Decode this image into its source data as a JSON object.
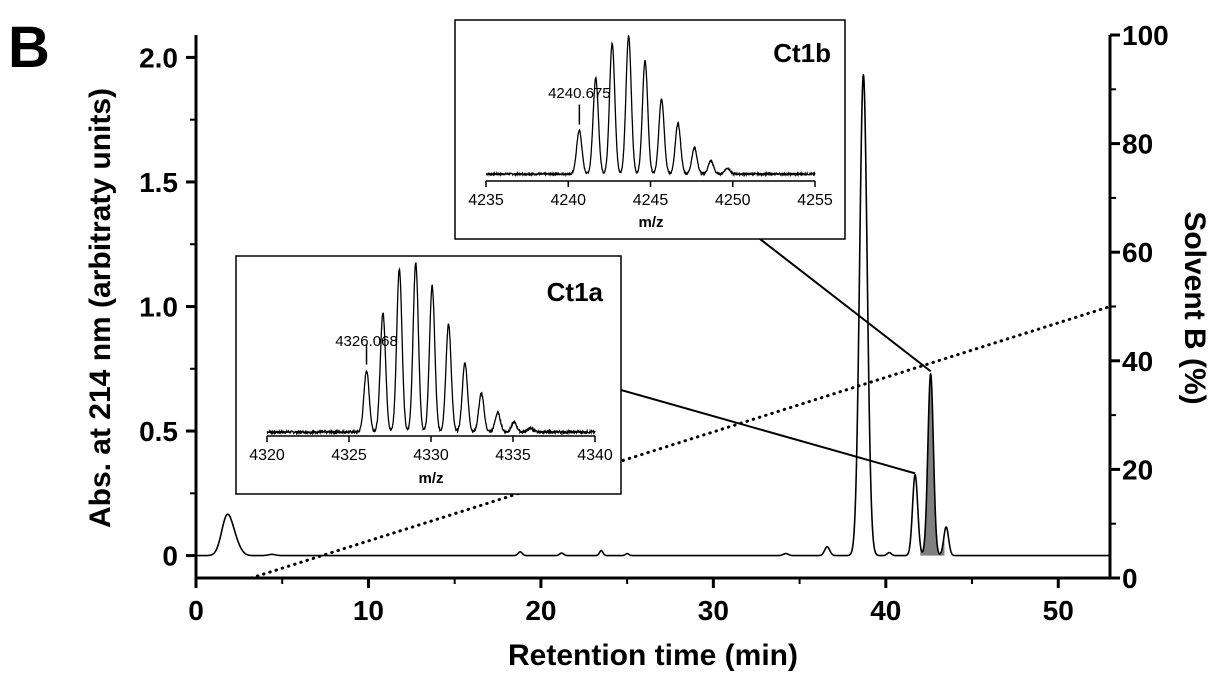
{
  "panel_label": "B",
  "chart_data": [
    {
      "type": "line",
      "xlabel": "Retention time (min)",
      "ylabel": "Abs. at 214 nm (arbitraty units)",
      "y2label": "Solvent B (%)",
      "xlim": [
        0,
        53
      ],
      "ylim": [
        -0.09,
        2.09
      ],
      "y2lim": [
        0,
        100
      ],
      "xticks": [
        "0",
        "10",
        "20",
        "30",
        "40",
        "50"
      ],
      "yticks": [
        "0",
        "0.5",
        "1.0",
        "1.5",
        "2.0"
      ],
      "y2ticks": [
        "0",
        "20",
        "40",
        "60",
        "80",
        "100"
      ],
      "xtick_values": [
        0,
        10,
        20,
        30,
        40,
        50
      ],
      "ytick_values": [
        0,
        0.5,
        1.0,
        1.5,
        2.0
      ],
      "y2tick_values": [
        0,
        20,
        40,
        60,
        80,
        100
      ],
      "series": [
        {
          "kind": "chromatogram",
          "baseline": 0,
          "peaks": [
            {
              "x": 1.8,
              "height": 0.155,
              "width": 0.32
            },
            {
              "x": 2.3,
              "height": 0.04,
              "width": 0.3
            },
            {
              "x": 4.4,
              "height": 0.005,
              "width": 0.2
            },
            {
              "x": 18.8,
              "height": 0.015,
              "width": 0.12
            },
            {
              "x": 21.2,
              "height": 0.01,
              "width": 0.12
            },
            {
              "x": 23.5,
              "height": 0.02,
              "width": 0.1
            },
            {
              "x": 25.0,
              "height": 0.008,
              "width": 0.1
            },
            {
              "x": 34.2,
              "height": 0.008,
              "width": 0.15
            },
            {
              "x": 36.6,
              "height": 0.035,
              "width": 0.15
            },
            {
              "x": 38.7,
              "height": 1.93,
              "width": 0.22
            },
            {
              "x": 40.2,
              "height": 0.012,
              "width": 0.12
            },
            {
              "x": 41.7,
              "height": 0.325,
              "width": 0.15
            },
            {
              "x": 42.6,
              "height": 0.73,
              "width": 0.16
            },
            {
              "x": 43.5,
              "height": 0.115,
              "width": 0.14
            }
          ],
          "shaded_range": [
            42.0,
            43.4
          ],
          "shaded_color": "#808080"
        },
        {
          "kind": "gradient",
          "axis": "right",
          "style": "dotted",
          "x": [
            3.2,
            53
          ],
          "y": [
            0,
            50
          ]
        }
      ],
      "callouts": [
        {
          "from_inset": "Ct1a",
          "to_x": 41.7,
          "to_y": 0.33
        },
        {
          "from_inset": "Ct1b",
          "to_x": 42.6,
          "to_y": 0.74
        }
      ]
    },
    {
      "id": "Ct1a",
      "type": "line",
      "title": "Ct1a",
      "xlabel": "m/z",
      "xlim": [
        4320,
        4340
      ],
      "xticks": [
        "4320",
        "4325",
        "4330",
        "4335",
        "4340"
      ],
      "xtick_values": [
        4320,
        4325,
        4330,
        4335,
        4340
      ],
      "annotation": {
        "text": "4326.068",
        "x": 4326.068
      },
      "peaks": [
        {
          "x": 4326.07,
          "height": 0.32
        },
        {
          "x": 4327.07,
          "height": 0.62
        },
        {
          "x": 4328.07,
          "height": 0.85
        },
        {
          "x": 4329.07,
          "height": 0.88
        },
        {
          "x": 4330.07,
          "height": 0.76
        },
        {
          "x": 4331.07,
          "height": 0.56
        },
        {
          "x": 4332.07,
          "height": 0.36
        },
        {
          "x": 4333.07,
          "height": 0.2
        },
        {
          "x": 4334.07,
          "height": 0.1
        },
        {
          "x": 4335.07,
          "height": 0.05
        },
        {
          "x": 4336.07,
          "height": 0.02
        }
      ]
    },
    {
      "id": "Ct1b",
      "type": "line",
      "title": "Ct1b",
      "xlabel": "m/z",
      "xlim": [
        4235,
        4255
      ],
      "xticks": [
        "4235",
        "4240",
        "4245",
        "4250",
        "4255"
      ],
      "xtick_values": [
        4235,
        4240,
        4245,
        4250,
        4255
      ],
      "annotation": {
        "text": "4240.675",
        "x": 4240.675
      },
      "peaks": [
        {
          "x": 4240.67,
          "height": 0.3
        },
        {
          "x": 4241.67,
          "height": 0.66
        },
        {
          "x": 4242.67,
          "height": 0.9
        },
        {
          "x": 4243.67,
          "height": 0.95
        },
        {
          "x": 4244.67,
          "height": 0.78
        },
        {
          "x": 4245.67,
          "height": 0.52
        },
        {
          "x": 4246.67,
          "height": 0.35
        },
        {
          "x": 4247.67,
          "height": 0.18
        },
        {
          "x": 4248.67,
          "height": 0.09
        },
        {
          "x": 4249.67,
          "height": 0.04
        }
      ]
    }
  ]
}
